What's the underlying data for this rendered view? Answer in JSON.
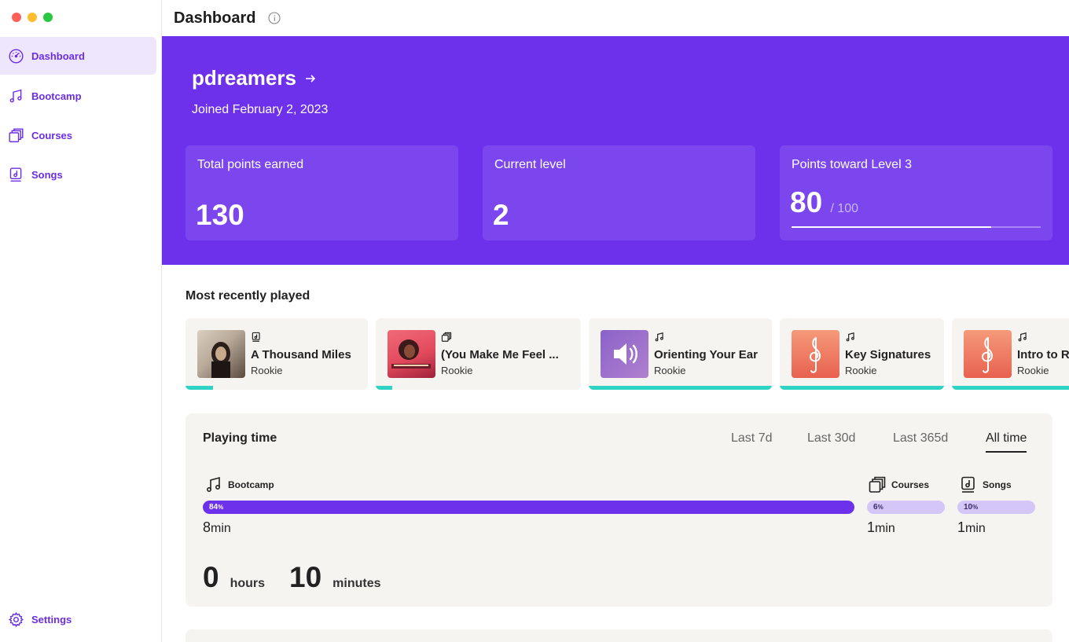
{
  "window": {
    "traffic_lights": [
      "#fe5f57",
      "#febc2e",
      "#28c840"
    ]
  },
  "sidebar": {
    "items": [
      {
        "label": "Dashboard",
        "icon": "gauge-icon",
        "active": true
      },
      {
        "label": "Bootcamp",
        "icon": "music-note-icon"
      },
      {
        "label": "Courses",
        "icon": "stacked-cards-icon"
      },
      {
        "label": "Songs",
        "icon": "song-icon"
      }
    ],
    "settings_label": "Settings"
  },
  "header": {
    "title": "Dashboard",
    "info_icon": "info-icon"
  },
  "profile": {
    "username": "pdreamers",
    "joined": "Joined February 2, 2023"
  },
  "stats": {
    "total_points_label": "Total points earned",
    "total_points": "130",
    "level_label": "Current level",
    "level": "2",
    "toward_label": "Points toward Level 3",
    "toward_value": "80",
    "toward_max": "/ 100",
    "toward_fraction": 0.8
  },
  "recent": {
    "title": "Most recently played",
    "items": [
      {
        "title": "A Thousand Miles",
        "level": "Rookie",
        "type_icon": "song-icon",
        "progress": 0.15
      },
      {
        "title": "(You Make Me Feel ...",
        "level": "Rookie",
        "type_icon": "stacked-cards-icon",
        "progress": 0.08
      },
      {
        "title": "Orienting Your Ear",
        "level": "Rookie",
        "type_icon": "music-note-icon",
        "progress": 1.0
      },
      {
        "title": "Key Signatures",
        "level": "Rookie",
        "type_icon": "music-note-icon",
        "progress": 1.0
      },
      {
        "title": "Intro to R",
        "level": "Rookie",
        "type_icon": "music-note-icon",
        "progress": 1.0
      }
    ]
  },
  "playing_time": {
    "title": "Playing time",
    "tabs": [
      "Last 7d",
      "Last 30d",
      "Last 365d",
      "All time"
    ],
    "active_tab": "All time",
    "categories": [
      {
        "label": "Bootcamp",
        "percent": "84",
        "percent_sign": "%",
        "time": "8",
        "unit": "min"
      },
      {
        "label": "Courses",
        "percent": "6",
        "percent_sign": "%",
        "time": "1",
        "unit": "min"
      },
      {
        "label": "Songs",
        "percent": "10",
        "percent_sign": "%",
        "time": "1",
        "unit": "min"
      }
    ],
    "hours": "0",
    "hours_label": "hours",
    "minutes": "10",
    "minutes_label": "minutes"
  },
  "colors": {
    "accent": "#6d31ec",
    "teal": "#2fd3c3",
    "card_bg": "#f5f4f1"
  }
}
